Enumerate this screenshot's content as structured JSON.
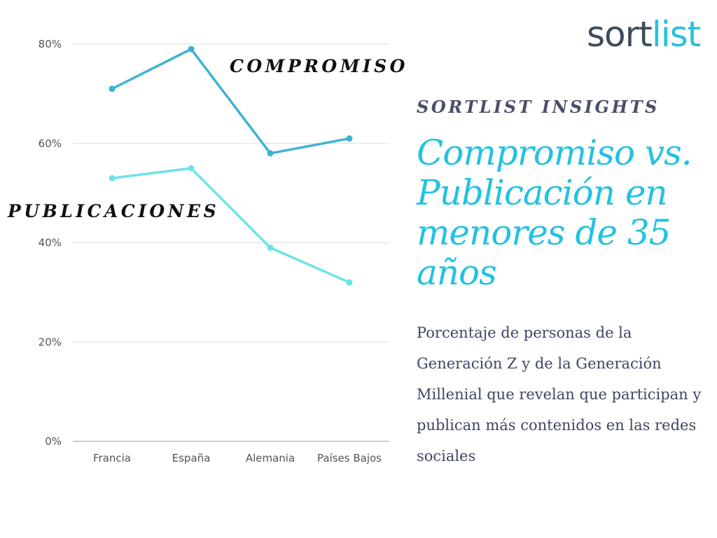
{
  "logo": {
    "part1": "sort",
    "part2": "list"
  },
  "kicker": "SORTLIST INSIGHTS",
  "title": "Compromiso vs. Publicación en menores de 35 años",
  "subtitle": "Porcentaje de personas de la Generación Z y de la Generación Millenial que revelan que participan y publican más contenidos en las redes sociales",
  "colors": {
    "compromiso": "#3fb2d3",
    "publicaciones": "#6ee3e8",
    "accent": "#22c2e2",
    "grid": "#dddddd"
  },
  "chart_data": {
    "type": "line",
    "categories": [
      "Francia",
      "España",
      "Alemania",
      "Países Bajos"
    ],
    "series": [
      {
        "name": "COMPROMISO",
        "values": [
          71,
          79,
          58,
          61
        ]
      },
      {
        "name": "PUBLICACIONES",
        "values": [
          53,
          55,
          39,
          32
        ]
      }
    ],
    "ylim": [
      0,
      80
    ],
    "yticks": [
      0,
      20,
      40,
      60,
      80
    ],
    "ytick_labels": [
      "0%",
      "20%",
      "40%",
      "60%",
      "80%"
    ],
    "ylabel": "",
    "xlabel": "",
    "grid": true
  }
}
